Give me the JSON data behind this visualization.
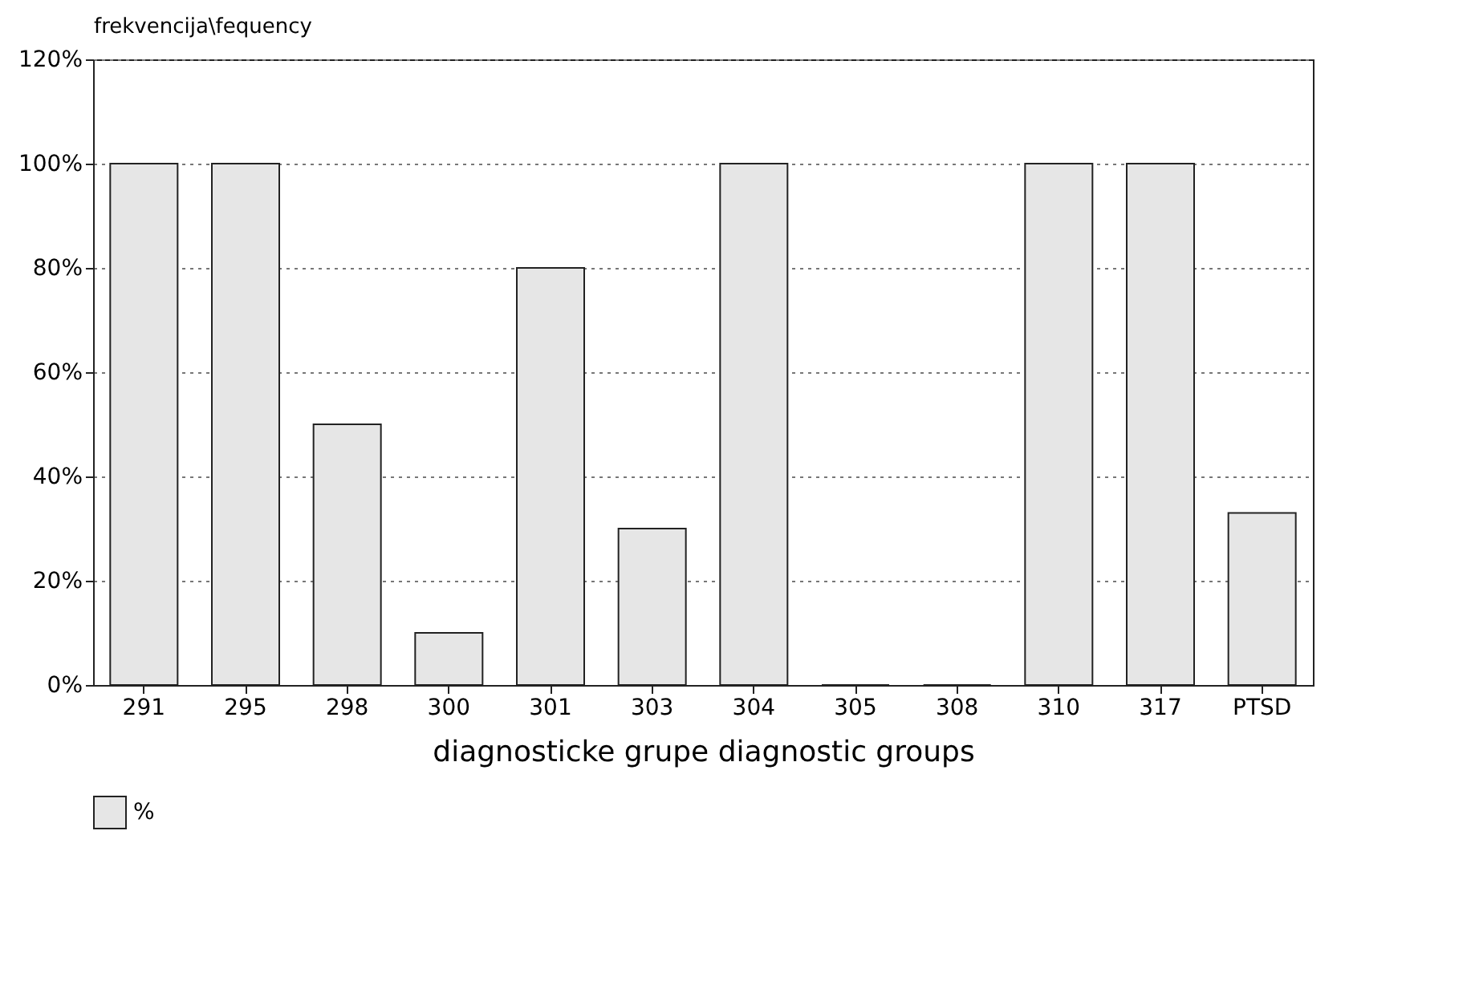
{
  "chart_data": {
    "type": "bar",
    "ylabel": "frekvencija\\fequency",
    "xlabel": "diagnosticke grupe diagnostic groups",
    "categories": [
      "291",
      "295",
      "298",
      "300",
      "301",
      "303",
      "304",
      "305",
      "308",
      "310",
      "317",
      "PTSD"
    ],
    "series": [
      {
        "name": "%",
        "color": "#e6e6e6",
        "values": [
          100,
          100,
          50,
          10,
          80,
          30,
          100,
          0,
          0,
          100,
          100,
          33
        ]
      }
    ],
    "ylim": [
      0,
      120
    ],
    "yticks": [
      {
        "value": 0,
        "label": "0%"
      },
      {
        "value": 20,
        "label": "20%"
      },
      {
        "value": 40,
        "label": "40%"
      },
      {
        "value": 60,
        "label": "60%"
      },
      {
        "value": 80,
        "label": "80%"
      },
      {
        "value": 100,
        "label": "100%"
      },
      {
        "value": 120,
        "label": "120%"
      }
    ],
    "grid": "y",
    "legend": "bottom"
  }
}
